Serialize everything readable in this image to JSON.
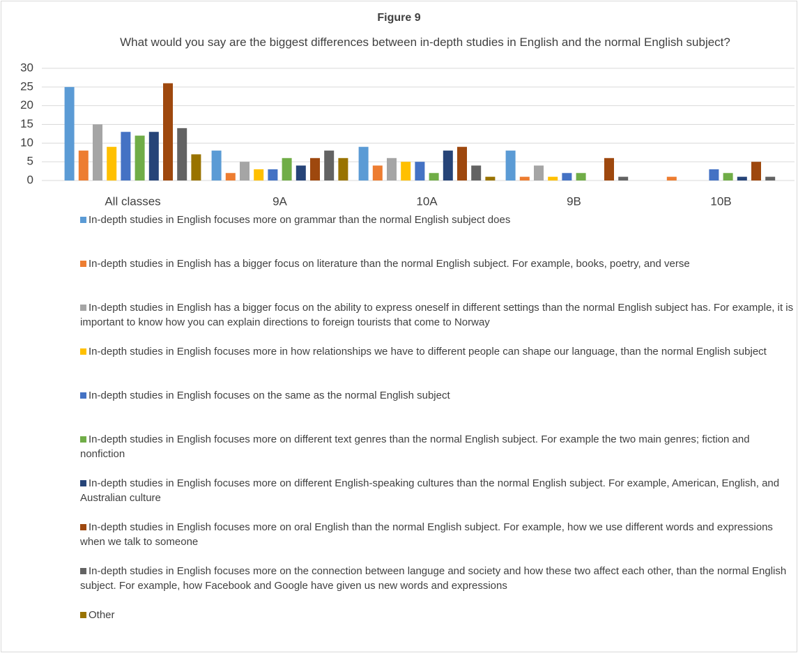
{
  "chart_data": {
    "type": "bar",
    "title": "Figure 9",
    "subtitle": "What would you say are the biggest differences between in-depth studies in English and the normal English subject?",
    "categories": [
      "All classes",
      "9A",
      "10A",
      "9B",
      "10B"
    ],
    "ylim": [
      0,
      30
    ],
    "yticks": [
      0,
      5,
      10,
      15,
      20,
      25,
      30
    ],
    "grid": true,
    "legend": "bottom",
    "series": [
      {
        "name": "In-depth studies in English focuses more on grammar than the normal English subject does",
        "color": "#5B9BD5",
        "values": [
          25,
          8,
          9,
          8,
          0
        ]
      },
      {
        "name": "In-depth studies in English has a bigger focus on literature than the normal English subject. For example, books, poetry, and verse",
        "color": "#ED7D31",
        "values": [
          8,
          2,
          4,
          1,
          1
        ]
      },
      {
        "name": "In-depth studies in English has a bigger focus on the ability to express oneself in different settings than the normal English subject has. For example, it is important to know how you can explain directions to foreign tourists that come to Norway",
        "color": "#A5A5A5",
        "values": [
          15,
          5,
          6,
          4,
          0
        ]
      },
      {
        "name": "In-depth studies in English focuses more in how relationships we have to different people can shape our language, than the normal English subject",
        "color": "#FFC000",
        "values": [
          9,
          3,
          5,
          1,
          0
        ]
      },
      {
        "name": "In-depth studies in English focuses on the same as the normal English subject",
        "color": "#4472C4",
        "values": [
          13,
          3,
          5,
          2,
          3
        ]
      },
      {
        "name": "In-depth studies in English focuses more on different text genres than the normal English subject. For example the two main genres; fiction and nonfiction",
        "color": "#70AD47",
        "values": [
          12,
          6,
          2,
          2,
          2
        ]
      },
      {
        "name": "In-depth studies in English focuses more on different English-speaking cultures than the normal English subject. For example, American, English, and Australian culture",
        "color": "#264478",
        "values": [
          13,
          4,
          8,
          0,
          1
        ]
      },
      {
        "name": "In-depth studies in English focuses more on oral English than the normal English subject. For example, how we use different words and expressions when we talk to someone",
        "color": "#9E480E",
        "values": [
          26,
          6,
          9,
          6,
          5
        ]
      },
      {
        "name": "In-depth studies in English focuses more on the connection between languge and society and how these two affect each other, than the normal English subject. For example, how Facebook and Google have given us new words and expressions",
        "color": "#636363",
        "values": [
          14,
          8,
          4,
          1,
          1
        ]
      },
      {
        "name": "Other",
        "color": "#997300",
        "values": [
          7,
          6,
          1,
          0,
          0
        ]
      }
    ]
  }
}
